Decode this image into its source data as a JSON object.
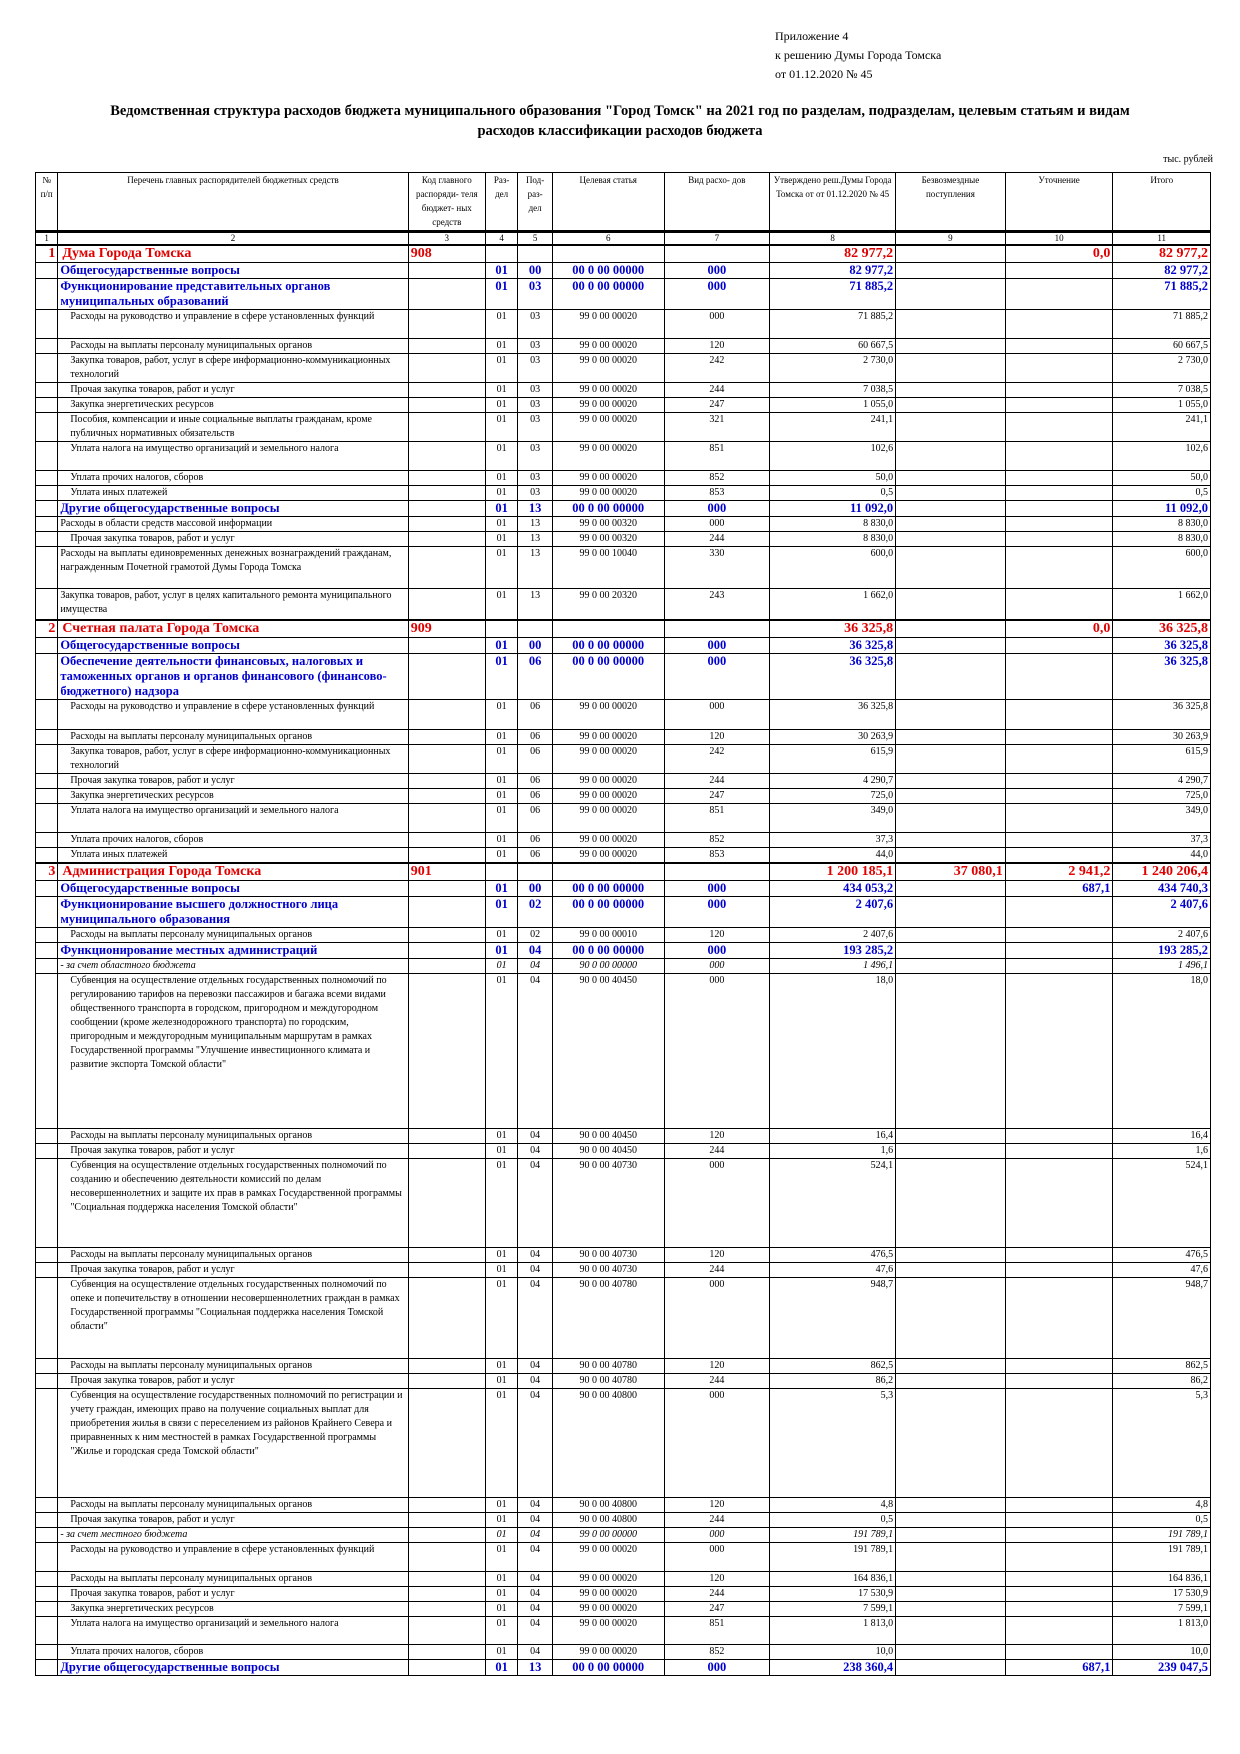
{
  "appendix": {
    "line1": "Приложение 4",
    "line2": "к решению Думы Города Томска",
    "line3": "от 01.12.2020 № 45"
  },
  "title": {
    "line1": "Ведомственная структура расходов бюджета муниципального образования \"Город Томск\" на 2021 год по разделам, подразделам, целевым статьям и видам",
    "line2": "расходов классификации расходов бюджета"
  },
  "units": "тыс. рублей",
  "columns": [
    "№ п/п",
    "Перечень главных распорядителей бюджетных средств",
    "Код главного распоряди- теля бюджет- ных средств",
    "Раз- дел",
    "Под- раз- дел",
    "Целевая статья",
    "Вид расхо- дов",
    "Утверждено реш.Думы Города Томска от от 01.12.2020 № 45",
    "Безвозмездные поступления",
    "Уточнение",
    "Итого"
  ],
  "column_numbers": [
    "1",
    "2",
    "3",
    "4",
    "5",
    "6",
    "7",
    "8",
    "9",
    "10",
    "11"
  ],
  "rows": [
    {
      "lvl": "l0",
      "h": 16,
      "c": [
        "1",
        "Дума Города Томска",
        "908",
        "",
        "",
        "",
        "",
        "82 977,2",
        "",
        "0,0",
        "82 977,2"
      ]
    },
    {
      "lvl": "l1",
      "h": 16,
      "c": [
        "",
        "Общегосударственные вопросы",
        "",
        "01",
        "00",
        "00 0 00 00000",
        "000",
        "82 977,2",
        "",
        "",
        "82 977,2"
      ]
    },
    {
      "lvl": "l1",
      "h": 30,
      "c": [
        "",
        "Функционирование представительных органов муниципальных образований",
        "",
        "01",
        "03",
        "00 0 00 00000",
        "000",
        "71 885,2",
        "",
        "",
        "71 885,2"
      ]
    },
    {
      "lvl": "l2",
      "h": 29,
      "c": [
        "",
        "Расходы на руководство и управление в сфере установленных функций",
        "",
        "01",
        "03",
        "99 0 00 00020",
        "000",
        "71 885,2",
        "",
        "",
        "71 885,2"
      ]
    },
    {
      "lvl": "l2",
      "h": 13,
      "c": [
        "",
        "Расходы на выплаты персоналу муниципальных органов",
        "",
        "01",
        "03",
        "99 0 00 00020",
        "120",
        "60 667,5",
        "",
        "",
        "60 667,5"
      ]
    },
    {
      "lvl": "l2",
      "h": 29,
      "c": [
        "",
        "Закупка товаров, работ, услуг в сфере информационно-коммуникационных технологий",
        "",
        "01",
        "03",
        "99 0 00 00020",
        "242",
        "2 730,0",
        "",
        "",
        "2 730,0"
      ]
    },
    {
      "lvl": "l2",
      "h": 14,
      "c": [
        "",
        "Прочая закупка товаров, работ и услуг",
        "",
        "01",
        "03",
        "99 0 00 00020",
        "244",
        "7 038,5",
        "",
        "",
        "7 038,5"
      ]
    },
    {
      "lvl": "l2",
      "h": 14,
      "c": [
        "",
        "Закупка энергетических ресурсов",
        "",
        "01",
        "03",
        "99 0 00 00020",
        "247",
        "1 055,0",
        "",
        "",
        "1 055,0"
      ]
    },
    {
      "lvl": "l2",
      "h": 29,
      "c": [
        "",
        "Пособия, компенсации и иные социальные выплаты гражданам, кроме публичных нормативных обязательств",
        "",
        "01",
        "03",
        "99 0 00 00020",
        "321",
        "241,1",
        "",
        "",
        "241,1"
      ]
    },
    {
      "lvl": "l2",
      "h": 29,
      "c": [
        "",
        "Уплата налога на имущество организаций и земельного налога",
        "",
        "01",
        "03",
        "99 0 00 00020",
        "851",
        "102,6",
        "",
        "",
        "102,6"
      ]
    },
    {
      "lvl": "l2",
      "h": 15,
      "c": [
        "",
        "Уплата прочих налогов, сборов",
        "",
        "01",
        "03",
        "99 0 00 00020",
        "852",
        "50,0",
        "",
        "",
        "50,0"
      ]
    },
    {
      "lvl": "l2",
      "h": 13,
      "c": [
        "",
        "Уплата иных платежей",
        "",
        "01",
        "03",
        "99 0 00 00020",
        "853",
        "0,5",
        "",
        "",
        "0,5"
      ]
    },
    {
      "lvl": "l1",
      "h": 15,
      "c": [
        "",
        "Другие общегосударственные вопросы",
        "",
        "01",
        "13",
        "00 0 00 00000",
        "000",
        "11 092,0",
        "",
        "",
        "11 092,0"
      ]
    },
    {
      "lvl": "l3",
      "h": 14,
      "c": [
        "",
        "Расходы в области средств массовой информации",
        "",
        "01",
        "13",
        "99 0 00 00320",
        "000",
        "8 830,0",
        "",
        "",
        "8 830,0"
      ]
    },
    {
      "lvl": "l2",
      "h": 14,
      "c": [
        "",
        "Прочая закупка товаров, работ и услуг",
        "",
        "01",
        "13",
        "99 0 00 00320",
        "244",
        "8 830,0",
        "",
        "",
        "8 830,0"
      ]
    },
    {
      "lvl": "l3",
      "h": 42,
      "c": [
        "",
        "Расходы на выплаты единовременных денежных вознаграждений гражданам, награжденным Почетной грамотой Думы Города Томска",
        "",
        "01",
        "13",
        "99 0 00 10040",
        "330",
        "600,0",
        "",
        "",
        "600,0"
      ]
    },
    {
      "lvl": "l3",
      "h": 31,
      "c": [
        "",
        "Закупка товаров, работ, услуг в целях капитального ремонта муниципального имущества",
        "",
        "01",
        "13",
        "99 0 00 20320",
        "243",
        "1 662,0",
        "",
        "",
        "1 662,0"
      ]
    },
    {
      "lvl": "l0",
      "h": 18,
      "c": [
        "2",
        "Счетная палата Города Томска",
        "909",
        "",
        "",
        "",
        "",
        "36 325,8",
        "",
        "0,0",
        "36 325,8"
      ]
    },
    {
      "lvl": "l1",
      "h": 16,
      "c": [
        "",
        "Общегосударственные вопросы",
        "",
        "01",
        "00",
        "00 0 00 00000",
        "000",
        "36 325,8",
        "",
        "",
        "36 325,8"
      ]
    },
    {
      "lvl": "l1",
      "h": 46,
      "c": [
        "",
        "Обеспечение деятельности финансовых, налоговых и таможенных органов и органов финансового (финансово-бюджетного) надзора",
        "",
        "01",
        "06",
        "00 0 00 00000",
        "000",
        "36 325,8",
        "",
        "",
        "36 325,8"
      ]
    },
    {
      "lvl": "l2",
      "h": 30,
      "c": [
        "",
        "Расходы на руководство и управление в сфере установленных функций",
        "",
        "01",
        "06",
        "99 0 00 00020",
        "000",
        "36 325,8",
        "",
        "",
        "36 325,8"
      ]
    },
    {
      "lvl": "l2",
      "h": 13,
      "c": [
        "",
        "Расходы на выплаты персоналу муниципальных органов",
        "",
        "01",
        "06",
        "99 0 00 00020",
        "120",
        "30 263,9",
        "",
        "",
        "30 263,9"
      ]
    },
    {
      "lvl": "l2",
      "h": 29,
      "c": [
        "",
        "Закупка товаров, работ, услуг в сфере информационно-коммуникационных технологий",
        "",
        "01",
        "06",
        "99 0 00 00020",
        "242",
        "615,9",
        "",
        "",
        "615,9"
      ]
    },
    {
      "lvl": "l2",
      "h": 14,
      "c": [
        "",
        "Прочая закупка товаров, работ и услуг",
        "",
        "01",
        "06",
        "99 0 00 00020",
        "244",
        "4 290,7",
        "",
        "",
        "4 290,7"
      ]
    },
    {
      "lvl": "l2",
      "h": 14,
      "c": [
        "",
        "Закупка энергетических ресурсов",
        "",
        "01",
        "06",
        "99 0 00 00020",
        "247",
        "725,0",
        "",
        "",
        "725,0"
      ]
    },
    {
      "lvl": "l2",
      "h": 29,
      "c": [
        "",
        "Уплата налога на имущество организаций и земельного налога",
        "",
        "01",
        "06",
        "99 0 00 00020",
        "851",
        "349,0",
        "",
        "",
        "349,0"
      ]
    },
    {
      "lvl": "l2",
      "h": 14,
      "c": [
        "",
        "Уплата прочих налогов, сборов",
        "",
        "01",
        "06",
        "99 0 00 00020",
        "852",
        "37,3",
        "",
        "",
        "37,3"
      ]
    },
    {
      "lvl": "l2",
      "h": 13,
      "c": [
        "",
        "Уплата иных платежей",
        "",
        "01",
        "06",
        "99 0 00 00020",
        "853",
        "44,0",
        "",
        "",
        "44,0"
      ]
    },
    {
      "lvl": "l0",
      "h": 17,
      "c": [
        "3",
        "Администрация Города Томска",
        "901",
        "",
        "",
        "",
        "",
        "1 200 185,1",
        "37 080,1",
        "2 941,2",
        "1 240 206,4"
      ]
    },
    {
      "lvl": "l1",
      "h": 16,
      "c": [
        "",
        "Общегосударственные вопросы",
        "",
        "01",
        "00",
        "00 0 00 00000",
        "000",
        "434 053,2",
        "",
        "687,1",
        "434 740,3"
      ]
    },
    {
      "lvl": "l1",
      "h": 30,
      "c": [
        "",
        "Функционирование высшего должностного лица муниципального образования",
        "",
        "01",
        "02",
        "00 0 00 00000",
        "000",
        "2 407,6",
        "",
        "",
        "2 407,6"
      ]
    },
    {
      "lvl": "l2",
      "h": 14,
      "c": [
        "",
        "Расходы на выплаты персоналу муниципальных органов",
        "",
        "01",
        "02",
        "99 0 00 00010",
        "120",
        "2 407,6",
        "",
        "",
        "2 407,6"
      ]
    },
    {
      "lvl": "l1",
      "h": 15,
      "c": [
        "",
        "Функционирование местных администраций",
        "",
        "01",
        "04",
        "00 0 00 00000",
        "000",
        "193 285,2",
        "",
        "",
        "193 285,2"
      ]
    },
    {
      "lvl": "it",
      "h": 13,
      "c": [
        "",
        "- за счет областного бюджета",
        "",
        "01",
        "04",
        "90 0 00 00000",
        "000",
        "1 496,1",
        "",
        "",
        "1 496,1"
      ]
    },
    {
      "lvl": "l2",
      "h": 155,
      "c": [
        "",
        "Субвенция на осуществление отдельных государственных полномочий по регулированию тарифов на перевозки пассажиров и багажа всеми видами общественного транспорта в городском, пригородном и междугородном сообщении (кроме железнодорожного транспорта) по городским, пригородным и междугородным муниципальным маршрутам в рамках Государственной программы \"Улучшение инвестиционного климата и развитие экспорта Томской области\"",
        "",
        "01",
        "04",
        "90 0 00 40450",
        "000",
        "18,0",
        "",
        "",
        "18,0"
      ]
    },
    {
      "lvl": "l2",
      "h": 15,
      "c": [
        "",
        "Расходы на выплаты персоналу муниципальных органов",
        "",
        "01",
        "04",
        "90 0 00 40450",
        "120",
        "16,4",
        "",
        "",
        "16,4"
      ]
    },
    {
      "lvl": "l2",
      "h": 13,
      "c": [
        "",
        "Прочая закупка товаров, работ и услуг",
        "",
        "01",
        "04",
        "90 0 00 40450",
        "244",
        "1,6",
        "",
        "",
        "1,6"
      ]
    },
    {
      "lvl": "l2",
      "h": 89,
      "c": [
        "",
        "Субвенция на осуществление отдельных государственных полномочий по созданию и обеспечению деятельности комиссий по делам несовершеннолетних и защите их прав в рамках Государственной программы \"Социальная поддержка населения Томской области\"",
        "",
        "01",
        "04",
        "90 0 00 40730",
        "000",
        "524,1",
        "",
        "",
        "524,1"
      ]
    },
    {
      "lvl": "l2",
      "h": 14,
      "c": [
        "",
        "Расходы на выплаты персоналу муниципальных органов",
        "",
        "01",
        "04",
        "90 0 00 40730",
        "120",
        "476,5",
        "",
        "",
        "476,5"
      ]
    },
    {
      "lvl": "l2",
      "h": 13,
      "c": [
        "",
        "Прочая закупка товаров, работ и услуг",
        "",
        "01",
        "04",
        "90 0 00 40730",
        "244",
        "47,6",
        "",
        "",
        "47,6"
      ]
    },
    {
      "lvl": "l2",
      "h": 81,
      "c": [
        "",
        "Субвенция на осуществление отдельных государственных полномочий по опеке и попечительству в отношении несовершеннолетних граждан в рамках Государственной программы \"Социальная поддержка населения Томской области\"",
        "",
        "01",
        "04",
        "90 0 00 40780",
        "000",
        "948,7",
        "",
        "",
        "948,7"
      ]
    },
    {
      "lvl": "l2",
      "h": 14,
      "c": [
        "",
        "Расходы на выплаты персоналу муниципальных органов",
        "",
        "01",
        "04",
        "90 0 00 40780",
        "120",
        "862,5",
        "",
        "",
        "862,5"
      ]
    },
    {
      "lvl": "l2",
      "h": 14,
      "c": [
        "",
        "Прочая закупка товаров, работ и услуг",
        "",
        "01",
        "04",
        "90 0 00 40780",
        "244",
        "86,2",
        "",
        "",
        "86,2"
      ]
    },
    {
      "lvl": "l2",
      "h": 109,
      "c": [
        "",
        "Субвенция на осуществление государственных полномочий по регистрации и учету граждан, имеющих право на получение социальных выплат для приобретения жилья в связи с переселением из районов Крайнего Севера и приравненных к ним местностей в рамках Государственной программы \"Жилье и городская среда Томской области\"",
        "",
        "01",
        "04",
        "90 0 00 40800",
        "000",
        "5,3",
        "",
        "",
        "5,3"
      ]
    },
    {
      "lvl": "l2",
      "h": 14,
      "c": [
        "",
        "Расходы на выплаты персоналу муниципальных органов",
        "",
        "01",
        "04",
        "90 0 00 40800",
        "120",
        "4,8",
        "",
        "",
        "4,8"
      ]
    },
    {
      "lvl": "l2",
      "h": 13,
      "c": [
        "",
        "Прочая закупка товаров, работ и услуг",
        "",
        "01",
        "04",
        "90 0 00 40800",
        "244",
        "0,5",
        "",
        "",
        "0,5"
      ]
    },
    {
      "lvl": "it",
      "h": 13,
      "c": [
        "",
        "- за счет местного бюджета",
        "",
        "01",
        "04",
        "99 0 00 00000",
        "000",
        "191 789,1",
        "",
        "",
        "191 789,1"
      ]
    },
    {
      "lvl": "l2",
      "h": 29,
      "c": [
        "",
        "Расходы на руководство и управление в сфере установленных функций",
        "",
        "01",
        "04",
        "99 0 00 00020",
        "000",
        "191 789,1",
        "",
        "",
        "191 789,1"
      ]
    },
    {
      "lvl": "l2",
      "h": 14,
      "c": [
        "",
        "Расходы на выплаты персоналу муниципальных органов",
        "",
        "01",
        "04",
        "99 0 00 00020",
        "120",
        "164 836,1",
        "",
        "",
        "164 836,1"
      ]
    },
    {
      "lvl": "l2",
      "h": 14,
      "c": [
        "",
        "Прочая закупка товаров, работ и услуг",
        "",
        "01",
        "04",
        "99 0 00 00020",
        "244",
        "17 530,9",
        "",
        "",
        "17 530,9"
      ]
    },
    {
      "lvl": "l2",
      "h": 14,
      "c": [
        "",
        "Закупка энергетических ресурсов",
        "",
        "01",
        "04",
        "99 0 00 00020",
        "247",
        "7 599,1",
        "",
        "",
        "7 599,1"
      ]
    },
    {
      "lvl": "l2",
      "h": 28,
      "c": [
        "",
        "Уплата налога на имущество организаций и земельного налога",
        "",
        "01",
        "04",
        "99 0 00 00020",
        "851",
        "1 813,0",
        "",
        "",
        "1 813,0"
      ]
    },
    {
      "lvl": "l2",
      "h": 15,
      "c": [
        "",
        "Уплата прочих налогов, сборов",
        "",
        "01",
        "04",
        "99 0 00 00020",
        "852",
        "10,0",
        "",
        "",
        "10,0"
      ]
    },
    {
      "lvl": "l1",
      "h": 15,
      "c": [
        "",
        "Другие общегосударственные вопросы",
        "",
        "01",
        "13",
        "00 0 00 00000",
        "000",
        "238 360,4",
        "",
        "687,1",
        "239 047,5"
      ]
    }
  ]
}
